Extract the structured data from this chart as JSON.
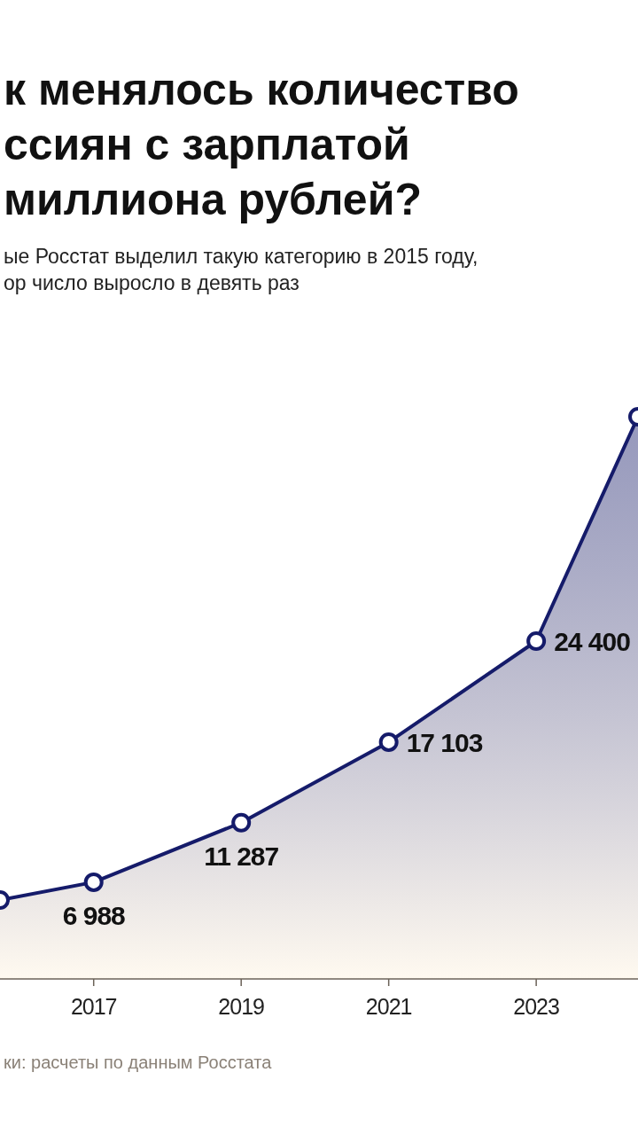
{
  "chart_data": {
    "type": "area",
    "title": "к менялось количество\nссиян с зарплатой\nмиллиона рублей?",
    "subtitle": "ые Росстат выделил такую категорию в 2015 году,\nор число выросло в девять раз",
    "annotations": [
      "ки: расчеты по данным Росстата"
    ],
    "x": [
      2015.73,
      2017,
      2019,
      2021,
      2023,
      2024.38
    ],
    "series": [
      {
        "color": "#151b6a",
        "values": [
          5700,
          6988,
          11287,
          17103,
          24400,
          40600
        ],
        "value_labels": [
          null,
          "6 988",
          "11 287",
          "17 103",
          "24 400",
          null
        ]
      }
    ],
    "xlim": [
      2015.73,
      2024.38
    ],
    "xticks": [
      2017,
      2019,
      2021,
      2023
    ],
    "tick_labels": "x",
    "marker": "circle"
  }
}
